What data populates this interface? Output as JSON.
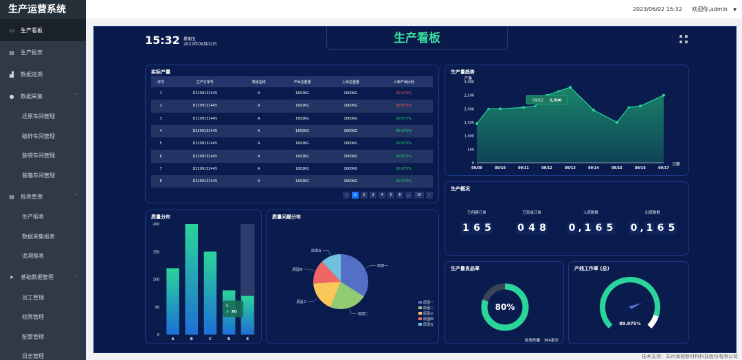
{
  "sidebar": {
    "brand": "生产运营系统",
    "items": [
      {
        "label": "生产看板",
        "icon": "monitor-icon",
        "active": true
      },
      {
        "label": "生产报表",
        "icon": "clipboard-icon"
      },
      {
        "label": "数据追溯",
        "icon": "chart-icon"
      },
      {
        "label": "数据采集",
        "icon": "user-icon",
        "chevron": "˄"
      },
      {
        "label": "还原车间管理",
        "sub": true
      },
      {
        "label": "破碎车间管理",
        "sub": true
      },
      {
        "label": "装袋车间管理",
        "sub": true
      },
      {
        "label": "装箱车间管理",
        "sub": true
      },
      {
        "label": "报表管理",
        "icon": "clipboard-icon",
        "chevron": "˄"
      },
      {
        "label": "生产报表",
        "sub": true
      },
      {
        "label": "数据采集报表",
        "sub": true
      },
      {
        "label": "追溯报表",
        "sub": true
      },
      {
        "label": "基础数据管理",
        "icon": "send-icon",
        "chevron": "˄"
      },
      {
        "label": "员工管理",
        "sub": true
      },
      {
        "label": "权限管理",
        "sub": true
      },
      {
        "label": "配置管理",
        "sub": true
      },
      {
        "label": "日志管理",
        "sub": true
      }
    ]
  },
  "topbar": {
    "datetime": "2023/06/02 15:32",
    "greeting": "欢迎你,admin"
  },
  "dashboard": {
    "time": "15:32",
    "weekday": "星期五",
    "date": "2023年06月02日",
    "title": "生产看板"
  },
  "table": {
    "title": "实际产量",
    "headers": [
      "序号",
      "生产订单号",
      "等级名称",
      "产出总重量",
      "入库总重量",
      "入库产出比例"
    ],
    "rows": [
      [
        "1",
        "D2209132445",
        "A",
        "1602KG",
        "1600KG",
        "99.875%",
        "red"
      ],
      [
        "2",
        "D2209132445",
        "A",
        "1602KG",
        "1600KG",
        "99.875%",
        "red"
      ],
      [
        "3",
        "D2209132445",
        "A",
        "1602KG",
        "1600KG",
        "99.875%",
        "green"
      ],
      [
        "4",
        "D2209132445",
        "A",
        "1602KG",
        "1600KG",
        "99.875%",
        "green"
      ],
      [
        "5",
        "D2209132445",
        "A",
        "1602KG",
        "1600KG",
        "99.875%",
        "green"
      ],
      [
        "6",
        "D2209132445",
        "A",
        "1602KG",
        "1600KG",
        "99.875%",
        "green"
      ],
      [
        "7",
        "D2209132445",
        "A",
        "1602KG",
        "1600KG",
        "99.875%",
        "green"
      ],
      [
        "8",
        "D2209132445",
        "A",
        "1602KG",
        "1600KG",
        "99.875%",
        "green"
      ]
    ],
    "pager": [
      "‹",
      "1",
      "2",
      "3",
      "4",
      "5",
      "6",
      "...",
      "10",
      "›"
    ]
  },
  "trend": {
    "title": "生产量趋势",
    "ylabel": "产量",
    "xlabel": "日期",
    "tooltip_date": "09/12",
    "tooltip_value": "2,500"
  },
  "status": {
    "title": "生产概况",
    "items": [
      {
        "label": "已创建订单",
        "digits": [
          "1",
          "6",
          "5"
        ]
      },
      {
        "label": "已完成订单",
        "digits": [
          "0",
          "4",
          "8"
        ]
      },
      {
        "label": "入库数数",
        "digits": [
          "0",
          ",",
          "1",
          "6",
          "5"
        ]
      },
      {
        "label": "出库数数",
        "digits": [
          "0",
          ",",
          "1",
          "6",
          "5"
        ]
      }
    ]
  },
  "quality": {
    "title": "质量分布",
    "tooltip_cat": "E",
    "tooltip_val": "70"
  },
  "issues": {
    "title": "质量问题分布"
  },
  "yield": {
    "title": "生产量良品率",
    "value": "80%",
    "footer": "检测总量：366批次"
  },
  "line_rate": {
    "title": "产线工作率 (总)",
    "value": "89.975%"
  },
  "footer": {
    "text": "技术支持：苏州润德新材料科技股份有限公司"
  },
  "chart_data": [
    {
      "type": "area",
      "title": "生产量趋势",
      "xlabel": "日期",
      "ylabel": "产量",
      "x": [
        "09/09",
        "09/10",
        "09/11",
        "09/12",
        "09/13",
        "09/14",
        "09/15",
        "09/16",
        "09/17"
      ],
      "extra_points": [
        {
          "x": 0.5,
          "y": 2000
        },
        {
          "x": 2.5,
          "y": 2100
        },
        {
          "x": 3.5,
          "y": 2650
        },
        {
          "x": 6.5,
          "y": 2050
        }
      ],
      "values": [
        1450,
        2000,
        2050,
        2500,
        2800,
        1950,
        1500,
        2100,
        2500
      ],
      "ylim": [
        0,
        3000
      ],
      "yticks": [
        0,
        500,
        1000,
        1500,
        2000,
        2500,
        3000
      ],
      "ytick_labels": [
        "0",
        "500",
        "1,000",
        "1,500",
        "2,000",
        "2,500",
        "3,000"
      ],
      "colors": {
        "line": "#2bd49a",
        "fill": "#1a8a6a"
      }
    },
    {
      "type": "bar",
      "title": "质量分布",
      "categories": [
        "A",
        "B",
        "C",
        "D",
        "E"
      ],
      "values": [
        120,
        200,
        150,
        80,
        70
      ],
      "ylim": [
        0,
        200
      ],
      "yticks": [
        0,
        50,
        100,
        150,
        200
      ],
      "highlight_background": "E",
      "colors": {
        "top": "#2bd49a",
        "bottom": "#1d6fd6"
      }
    },
    {
      "type": "pie",
      "title": "质量问题分布",
      "labels": [
        "原因一",
        "原因二",
        "原因三",
        "原因四",
        "原因五"
      ],
      "values": [
        34,
        22,
        18,
        14,
        12
      ],
      "colors": [
        "#5470c6",
        "#91cc75",
        "#fac858",
        "#ee6666",
        "#73c0de"
      ]
    },
    {
      "type": "gauge",
      "title": "生产量良品率",
      "value": 0.8,
      "colors": {
        "filled": "#2bd49a",
        "track": "#3a4456"
      }
    },
    {
      "type": "gauge",
      "title": "产线工作率 (总)",
      "value": 0.89975,
      "colors": {
        "filled": "#2bd49a",
        "rest": "#ffffff",
        "needle": "#5470c6"
      }
    }
  ]
}
